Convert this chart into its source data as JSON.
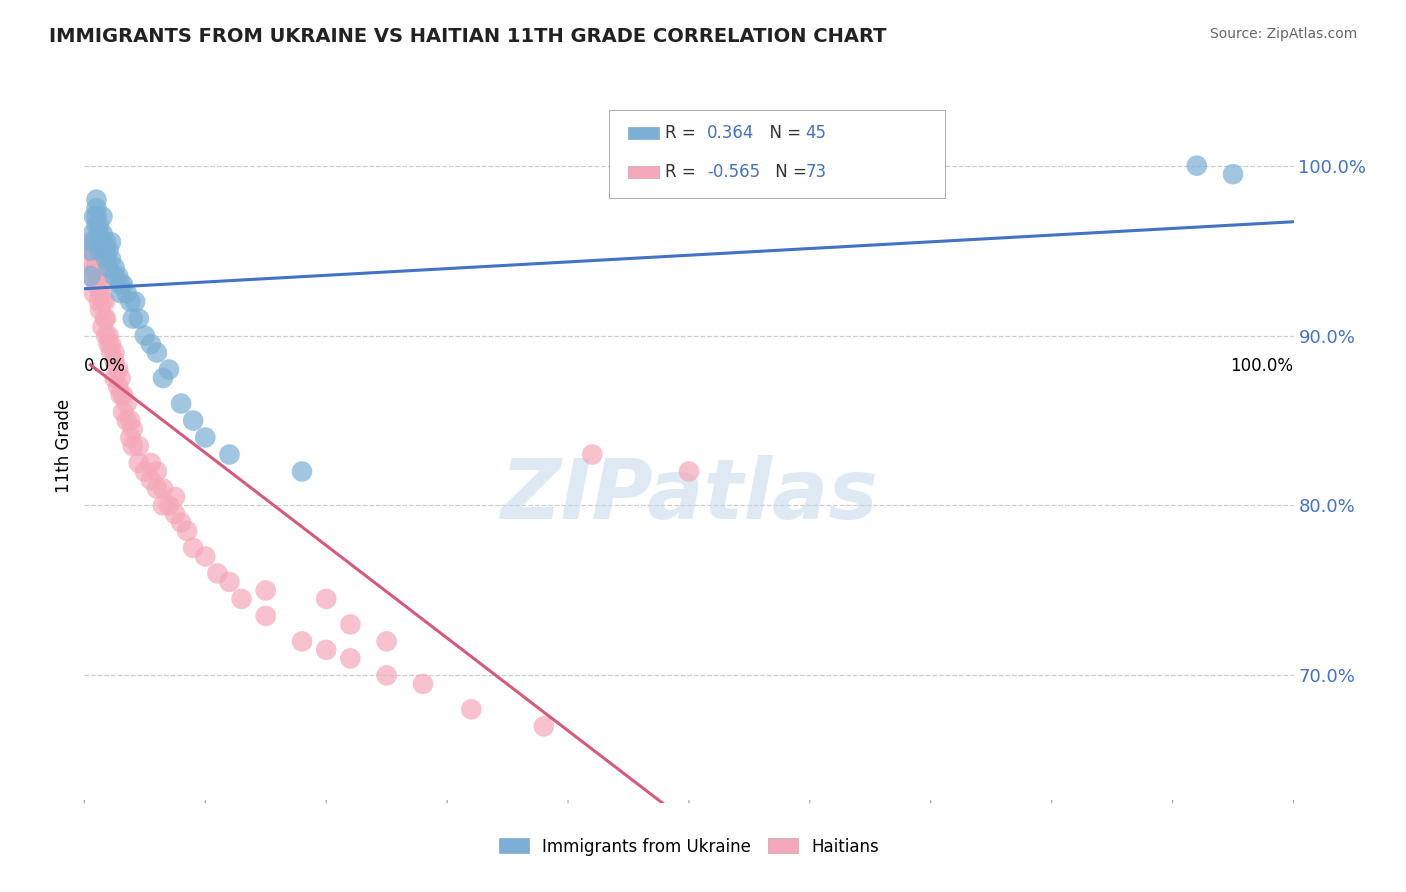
{
  "title": "IMMIGRANTS FROM UKRAINE VS HAITIAN 11TH GRADE CORRELATION CHART",
  "source": "Source: ZipAtlas.com",
  "ylabel": "11th Grade",
  "ytick_labels": [
    "70.0%",
    "80.0%",
    "90.0%",
    "100.0%"
  ],
  "ytick_values": [
    0.7,
    0.8,
    0.9,
    1.0
  ],
  "xlim": [
    0.0,
    1.0
  ],
  "ylim": [
    0.625,
    1.045
  ],
  "legend_ukraine": "Immigrants from Ukraine",
  "legend_haitian": "Haitians",
  "R_ukraine": "0.364",
  "N_ukraine": "45",
  "R_haitian": "-0.565",
  "N_haitian": "73",
  "ukraine_color": "#7BAFD4",
  "haitian_color": "#F4A8B8",
  "ukraine_line_color": "#4472C4",
  "haitian_line_color": "#D45B7A",
  "ukraine_points_x": [
    0.005,
    0.005,
    0.007,
    0.008,
    0.008,
    0.01,
    0.01,
    0.01,
    0.01,
    0.012,
    0.012,
    0.013,
    0.015,
    0.015,
    0.015,
    0.017,
    0.018,
    0.018,
    0.02,
    0.02,
    0.022,
    0.022,
    0.025,
    0.025,
    0.028,
    0.03,
    0.03,
    0.032,
    0.035,
    0.038,
    0.04,
    0.042,
    0.045,
    0.05,
    0.055,
    0.06,
    0.065,
    0.07,
    0.08,
    0.09,
    0.1,
    0.12,
    0.18,
    0.92,
    0.95
  ],
  "ukraine_points_y": [
    0.935,
    0.95,
    0.96,
    0.955,
    0.97,
    0.965,
    0.97,
    0.975,
    0.98,
    0.96,
    0.965,
    0.95,
    0.955,
    0.96,
    0.97,
    0.95,
    0.945,
    0.955,
    0.94,
    0.95,
    0.945,
    0.955,
    0.94,
    0.935,
    0.935,
    0.925,
    0.93,
    0.93,
    0.925,
    0.92,
    0.91,
    0.92,
    0.91,
    0.9,
    0.895,
    0.89,
    0.875,
    0.88,
    0.86,
    0.85,
    0.84,
    0.83,
    0.82,
    1.0,
    0.995
  ],
  "haitian_points_x": [
    0.005,
    0.005,
    0.007,
    0.007,
    0.008,
    0.008,
    0.01,
    0.01,
    0.01,
    0.01,
    0.012,
    0.012,
    0.013,
    0.013,
    0.015,
    0.015,
    0.015,
    0.017,
    0.017,
    0.018,
    0.018,
    0.02,
    0.02,
    0.022,
    0.022,
    0.025,
    0.025,
    0.025,
    0.028,
    0.028,
    0.03,
    0.03,
    0.032,
    0.032,
    0.035,
    0.035,
    0.038,
    0.038,
    0.04,
    0.04,
    0.045,
    0.045,
    0.05,
    0.055,
    0.055,
    0.06,
    0.06,
    0.065,
    0.065,
    0.07,
    0.075,
    0.075,
    0.08,
    0.085,
    0.09,
    0.1,
    0.11,
    0.12,
    0.13,
    0.15,
    0.18,
    0.2,
    0.22,
    0.25,
    0.28,
    0.32,
    0.38,
    0.42,
    0.5,
    0.15,
    0.2,
    0.22,
    0.25
  ],
  "haitian_points_y": [
    0.945,
    0.955,
    0.935,
    0.95,
    0.925,
    0.94,
    0.93,
    0.94,
    0.945,
    0.955,
    0.92,
    0.935,
    0.915,
    0.925,
    0.905,
    0.92,
    0.93,
    0.91,
    0.92,
    0.9,
    0.91,
    0.895,
    0.9,
    0.89,
    0.895,
    0.875,
    0.885,
    0.89,
    0.87,
    0.88,
    0.865,
    0.875,
    0.855,
    0.865,
    0.85,
    0.86,
    0.84,
    0.85,
    0.835,
    0.845,
    0.825,
    0.835,
    0.82,
    0.815,
    0.825,
    0.81,
    0.82,
    0.8,
    0.81,
    0.8,
    0.795,
    0.805,
    0.79,
    0.785,
    0.775,
    0.77,
    0.76,
    0.755,
    0.745,
    0.735,
    0.72,
    0.715,
    0.71,
    0.7,
    0.695,
    0.68,
    0.67,
    0.83,
    0.82,
    0.75,
    0.745,
    0.73,
    0.72
  ],
  "watermark_text": "ZIPatlas",
  "background_color": "#FFFFFF",
  "grid_color": "#CCCCCC",
  "ytick_color": "#4472C4"
}
